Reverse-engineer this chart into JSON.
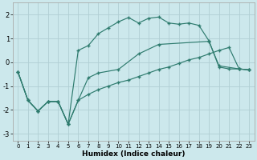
{
  "xlabel": "Humidex (Indice chaleur)",
  "background_color": "#cce8ec",
  "grid_color": "#b0ced4",
  "line_color": "#2e7b6e",
  "xlim": [
    -0.5,
    23.5
  ],
  "ylim": [
    -3.3,
    2.5
  ],
  "yticks": [
    -3,
    -2,
    -1,
    0,
    1,
    2
  ],
  "xticks": [
    0,
    1,
    2,
    3,
    4,
    5,
    6,
    7,
    8,
    9,
    10,
    11,
    12,
    13,
    14,
    15,
    16,
    17,
    18,
    19,
    20,
    21,
    22,
    23
  ],
  "line1_x": [
    0,
    1,
    2,
    3,
    4,
    5,
    6,
    7,
    8,
    9,
    10,
    11,
    12,
    13,
    14,
    15,
    16,
    17,
    18,
    19,
    20,
    21,
    22,
    23
  ],
  "line1_y": [
    -0.4,
    -1.6,
    -2.05,
    -1.65,
    -1.65,
    -2.6,
    0.5,
    0.7,
    1.2,
    1.45,
    1.7,
    1.88,
    1.65,
    1.85,
    1.9,
    1.65,
    1.6,
    1.65,
    1.55,
    0.9,
    -0.2,
    -0.28,
    -0.28,
    -0.32
  ],
  "line2_x": [
    0,
    1,
    2,
    3,
    4,
    5,
    6,
    7,
    8,
    9,
    10,
    11,
    12,
    13,
    14,
    15,
    16,
    17,
    18,
    19,
    20,
    21,
    22,
    23
  ],
  "line2_y": [
    -0.4,
    -1.6,
    -2.05,
    -1.65,
    -1.65,
    -2.6,
    -1.6,
    -1.35,
    -1.15,
    -1.0,
    -0.85,
    -0.75,
    -0.6,
    -0.45,
    -0.3,
    -0.2,
    -0.05,
    0.1,
    0.2,
    0.35,
    0.5,
    0.62,
    -0.28,
    -0.32
  ],
  "line3_x": [
    0,
    1,
    2,
    3,
    4,
    5,
    6,
    7,
    8,
    10,
    12,
    14,
    19,
    20,
    22,
    23
  ],
  "line3_y": [
    -0.4,
    -1.6,
    -2.05,
    -1.65,
    -1.65,
    -2.6,
    -1.6,
    -0.65,
    -0.45,
    -0.3,
    0.35,
    0.75,
    0.88,
    -0.15,
    -0.28,
    -0.32
  ]
}
